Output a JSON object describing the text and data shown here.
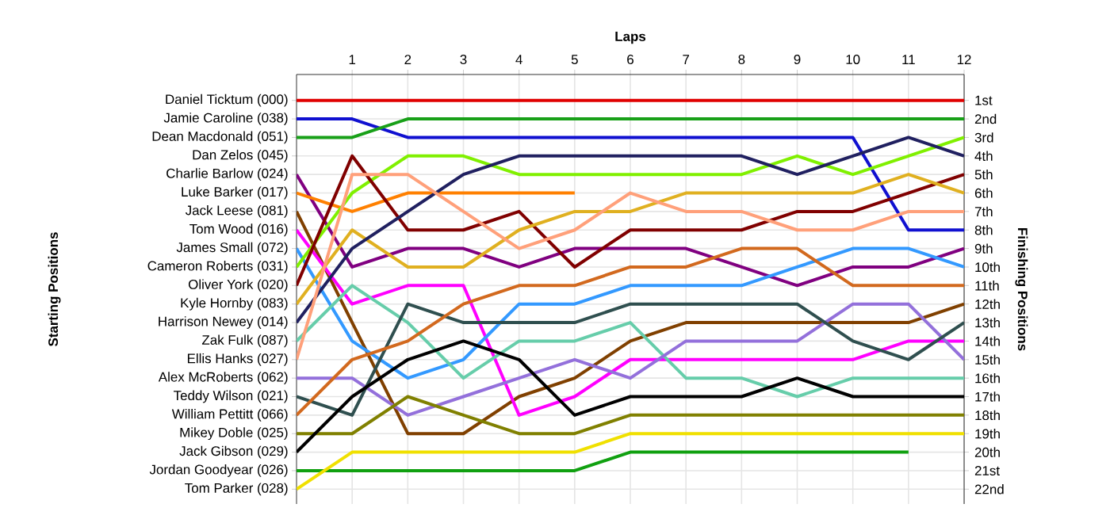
{
  "chart_data": {
    "type": "line",
    "xlabel": "Laps",
    "y2label": "Finishing Positions",
    "x": [
      0,
      1,
      2,
      3,
      4,
      5,
      6,
      7,
      8,
      9,
      10,
      11,
      12
    ],
    "xlim": [
      0,
      12
    ],
    "xticks": [
      1,
      2,
      3,
      4,
      5,
      6,
      7,
      8,
      9,
      10,
      11,
      12
    ],
    "y2lim": [
      22.8,
      -0.4
    ],
    "y2ticks": [
      {
        "value": 1,
        "label": "1st"
      },
      {
        "value": 2,
        "label": "2nd"
      },
      {
        "value": 3,
        "label": "3rd"
      },
      {
        "value": 4,
        "label": "4th"
      },
      {
        "value": 5,
        "label": "5th"
      },
      {
        "value": 6,
        "label": "6th"
      },
      {
        "value": 7,
        "label": "7th"
      },
      {
        "value": 8,
        "label": "8th"
      },
      {
        "value": 9,
        "label": "9th"
      },
      {
        "value": 10,
        "label": "10th"
      },
      {
        "value": 11,
        "label": "11th"
      },
      {
        "value": 12,
        "label": "12th"
      },
      {
        "value": 13,
        "label": "13th"
      },
      {
        "value": 14,
        "label": "14th"
      },
      {
        "value": 15,
        "label": "15th"
      },
      {
        "value": 16,
        "label": "16th"
      },
      {
        "value": 17,
        "label": "17th"
      },
      {
        "value": 18,
        "label": "18th"
      },
      {
        "value": 19,
        "label": "19th"
      },
      {
        "value": 20,
        "label": "20th"
      },
      {
        "value": 21,
        "label": "21st"
      },
      {
        "value": 22,
        "label": "22nd"
      }
    ],
    "annotations": [
      "Daniel Ticktum (000)",
      "Jamie Caroline (038)",
      "Dean Macdonald (051)",
      "Dan Zelos (045)",
      "Charlie Barlow (024)",
      "Luke Barker (017)",
      "Jack Leese (081)",
      "Tom Wood (016)",
      "James Small (072)",
      "Cameron Roberts (031)",
      "Oliver York (020)",
      "Kyle Hornby (083)",
      "Harrison Newey (014)",
      "Zak Fulk (087)",
      "Ellis Hanks (027)",
      "Alex McRoberts (062)",
      "Teddy Wilson (021)",
      "William Pettitt (066)",
      "Mikey Doble (025)",
      "Jack Gibson (029)",
      "Jordan Goodyear (026)",
      "Tom Parker (028)",
      "Starting Positions"
    ],
    "grid": true,
    "marker": "none",
    "line_style": "solid",
    "series": [
      {
        "axis": "y2",
        "color": "#e00000",
        "values": [
          1,
          1,
          1,
          1,
          1,
          1,
          1,
          1,
          1,
          1,
          1,
          1,
          1
        ]
      },
      {
        "axis": "y2",
        "color": "#1010d0",
        "values": [
          2,
          2,
          3,
          3,
          3,
          3,
          3,
          3,
          3,
          3,
          3,
          8,
          8
        ]
      },
      {
        "axis": "y2",
        "color": "#18a018",
        "values": [
          3,
          3,
          2,
          2,
          2,
          2,
          2,
          2,
          2,
          2,
          2,
          2,
          2
        ]
      },
      {
        "axis": "y2",
        "color": "#800080",
        "values": [
          5,
          10,
          9,
          9,
          10,
          9,
          9,
          9,
          10,
          11,
          10,
          10,
          9
        ]
      },
      {
        "axis": "y2",
        "color": "#ff8000",
        "values": [
          6,
          7,
          6,
          6,
          6,
          6,
          null,
          null,
          null,
          null,
          null,
          null,
          null
        ]
      },
      {
        "axis": "y2",
        "color": "#804000",
        "values": [
          7,
          13,
          19,
          19,
          17,
          16,
          14,
          13,
          13,
          13,
          13,
          13,
          12
        ]
      },
      {
        "axis": "y2",
        "color": "#ff00ff",
        "values": [
          8,
          12,
          11,
          11,
          18,
          17,
          15,
          15,
          15,
          15,
          15,
          14,
          14
        ]
      },
      {
        "axis": "y2",
        "color": "#3399ff",
        "values": [
          9,
          14,
          16,
          15,
          12,
          12,
          11,
          11,
          11,
          10,
          9,
          9,
          10
        ]
      },
      {
        "axis": "y2",
        "color": "#80f000",
        "values": [
          10,
          6,
          4,
          4,
          5,
          5,
          5,
          5,
          5,
          4,
          5,
          4,
          3
        ]
      },
      {
        "axis": "y2",
        "color": "#800000",
        "values": [
          11,
          4,
          8,
          8,
          7,
          10,
          8,
          8,
          8,
          7,
          7,
          6,
          5
        ]
      },
      {
        "axis": "y2",
        "color": "#e0b020",
        "values": [
          12,
          8,
          10,
          10,
          8,
          7,
          7,
          6,
          6,
          6,
          6,
          5,
          6
        ]
      },
      {
        "axis": "y2",
        "color": "#202060",
        "values": [
          13,
          9,
          7,
          5,
          4,
          4,
          4,
          4,
          4,
          5,
          4,
          3,
          4
        ]
      },
      {
        "axis": "y2",
        "color": "#66cdaa",
        "values": [
          14,
          11,
          13,
          16,
          14,
          14,
          13,
          16,
          16,
          17,
          16,
          16,
          16
        ]
      },
      {
        "axis": "y2",
        "color": "#ffa07a",
        "values": [
          15,
          5,
          5,
          7,
          9,
          8,
          6,
          7,
          7,
          8,
          8,
          7,
          7
        ]
      },
      {
        "axis": "y2",
        "color": "#9370db",
        "values": [
          16,
          16,
          18,
          17,
          16,
          15,
          16,
          14,
          14,
          14,
          12,
          12,
          15
        ]
      },
      {
        "axis": "y2",
        "color": "#2f4f4f",
        "values": [
          17,
          18,
          12,
          13,
          13,
          13,
          12,
          12,
          12,
          12,
          14,
          15,
          13
        ]
      },
      {
        "axis": "y2",
        "color": "#d2691e",
        "values": [
          18,
          15,
          14,
          12,
          11,
          11,
          10,
          10,
          9,
          9,
          11,
          11,
          11
        ]
      },
      {
        "axis": "y2",
        "color": "#808000",
        "values": [
          19,
          19,
          17,
          18,
          19,
          19,
          18,
          18,
          18,
          18,
          18,
          18,
          18
        ]
      },
      {
        "axis": "y2",
        "color": "#000000",
        "values": [
          20,
          17,
          15,
          14,
          15,
          18,
          17,
          17,
          17,
          16,
          17,
          17,
          17
        ]
      },
      {
        "axis": "y2",
        "color": "#10a010",
        "values": [
          21,
          21,
          21,
          21,
          21,
          21,
          20,
          20,
          20,
          20,
          20,
          20,
          null
        ]
      },
      {
        "axis": "y2",
        "color": "#f0e000",
        "values": [
          22,
          20,
          20,
          20,
          20,
          20,
          19,
          19,
          19,
          19,
          19,
          19,
          19
        ]
      }
    ]
  }
}
